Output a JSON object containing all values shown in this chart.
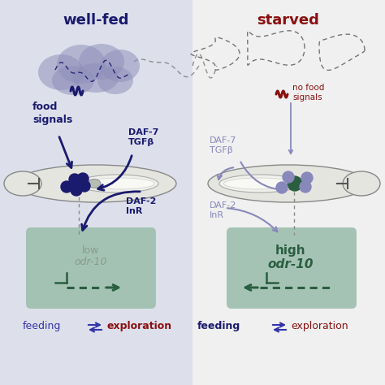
{
  "bg_left": "#dde0eb",
  "bg_right": "#f0f0f0",
  "cloud_color": "#9090bb",
  "dark_blue": "#1a1a6e",
  "medium_blue": "#3333aa",
  "light_purple": "#8888bb",
  "dark_green": "#2a5e40",
  "box_green": "#9dbfae",
  "dark_red": "#8b1010",
  "worm_outer": "#e0e0e0",
  "worm_inner": "#f2f2ee",
  "cell_blue": "#1a1a6e",
  "cell_gray": "#b0b8b0",
  "cell_purple": "#8888bb",
  "title_left": "well-fed",
  "title_right": "starved",
  "label_food": "food\nsignals",
  "label_no_food": "no food\nsignals",
  "label_daf7_left": "DAF-7\nTGFβ",
  "label_daf2_left": "DAF-2\nInR",
  "label_daf7_right": "DAF-7\nTGFβ",
  "label_daf2_right": "DAF-2\nInR",
  "label_low": "low",
  "label_odr_left": "odr-10",
  "label_high": "high",
  "label_odr_right": "odr-10",
  "label_feeding": "feeding",
  "label_exploration": "exploration"
}
